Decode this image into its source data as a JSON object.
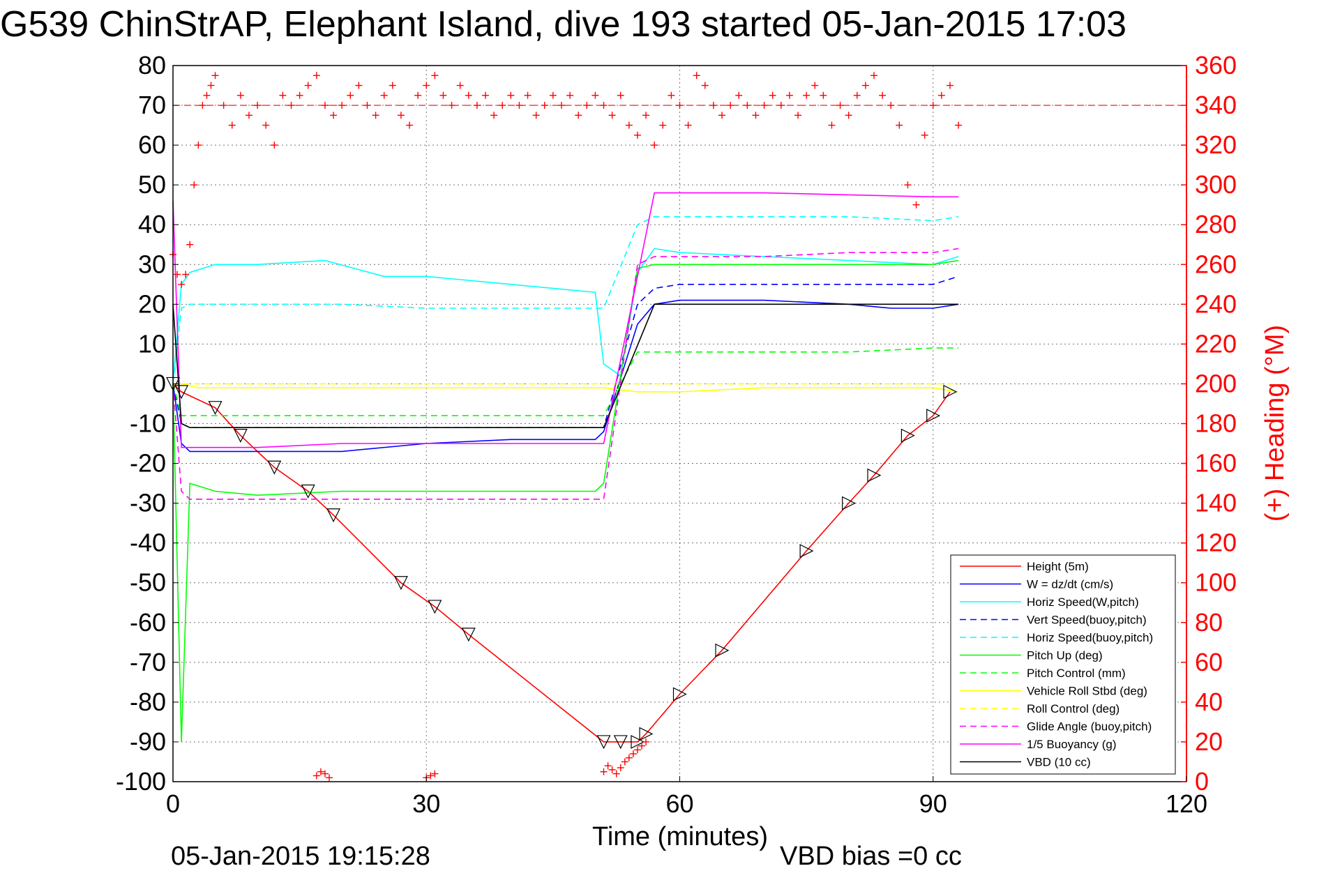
{
  "chart_data": {
    "type": "line",
    "title": "G539 ChinStrAP, Elephant Island, dive 193 started 05-Jan-2015 17:03",
    "xlabel": "Time (minutes)",
    "ylabel_right": "(+) Heading (°M)",
    "footer_left": "05-Jan-2015 19:15:28",
    "footer_right": "VBD bias =0 cc",
    "xlim": [
      0,
      120
    ],
    "ylim": [
      -100,
      80
    ],
    "ylim_right": [
      0,
      360
    ],
    "x_ticks": [
      "0",
      "30",
      "60",
      "90",
      "120"
    ],
    "y_ticks": [
      "80",
      "70",
      "60",
      "50",
      "40",
      "30",
      "20",
      "10",
      "0",
      "-10",
      "-20",
      "-30",
      "-40",
      "-50",
      "-60",
      "-70",
      "-80",
      "-90",
      "-100"
    ],
    "y_ticks_right": [
      "360",
      "340",
      "320",
      "300",
      "280",
      "260",
      "240",
      "220",
      "200",
      "180",
      "160",
      "140",
      "120",
      "100",
      "80",
      "60",
      "40",
      "20",
      "0"
    ],
    "grid": true,
    "legend_position": "bottom-right",
    "heading_reference": 340,
    "series": [
      {
        "name": "Height (5m)",
        "color": "#ff0000",
        "style": "solid",
        "x": [
          0,
          1,
          5,
          8,
          12,
          16,
          19,
          27,
          31,
          35,
          51,
          53,
          55,
          56,
          60,
          65,
          75,
          80,
          83,
          87,
          90,
          92
        ],
        "y": [
          0,
          -2,
          -6,
          -13,
          -21,
          -27,
          -33,
          -50,
          -56,
          -63,
          -90,
          -90,
          -90,
          -88,
          -78,
          -67,
          -42,
          -30,
          -23,
          -13,
          -8,
          -2
        ]
      },
      {
        "name": "W = dz/dt (cm/s)",
        "color": "#0000ff",
        "style": "solid",
        "x": [
          0,
          1,
          2,
          5,
          10,
          20,
          30,
          40,
          50,
          51,
          55,
          57,
          60,
          70,
          80,
          85,
          90,
          93
        ],
        "y": [
          0,
          -15,
          -17,
          -17,
          -17,
          -17,
          -15,
          -14,
          -14,
          -12,
          15,
          20,
          21,
          21,
          20,
          19,
          19,
          20
        ]
      },
      {
        "name": "Horiz Speed(W,pitch)",
        "color": "#00ffff",
        "style": "solid",
        "x": [
          0,
          1,
          2,
          5,
          10,
          18,
          25,
          30,
          40,
          50,
          51,
          53,
          55,
          57,
          60,
          70,
          80,
          90,
          93
        ],
        "y": [
          0,
          25,
          28,
          30,
          30,
          31,
          27,
          27,
          25,
          23,
          5,
          2,
          28,
          34,
          33,
          32,
          31,
          30,
          32
        ]
      },
      {
        "name": "Vert Speed(buoy,pitch)",
        "color": "#0000ff",
        "style": "dashed",
        "x": [
          0,
          1,
          2,
          10,
          20,
          30,
          40,
          51,
          55,
          57,
          60,
          70,
          80,
          90,
          93
        ],
        "y": [
          0,
          -10,
          -11,
          -11,
          -11,
          -11,
          -11,
          -11,
          20,
          24,
          25,
          25,
          25,
          25,
          27
        ]
      },
      {
        "name": "Horiz Speed(buoy,pitch)",
        "color": "#00ffff",
        "style": "dashed",
        "x": [
          0,
          1,
          2,
          10,
          20,
          30,
          40,
          51,
          55,
          57,
          60,
          70,
          80,
          90,
          93
        ],
        "y": [
          0,
          19,
          20,
          20,
          20,
          19,
          19,
          19,
          40,
          42,
          42,
          42,
          42,
          41,
          42
        ]
      },
      {
        "name": "Pitch Up (deg)",
        "color": "#00ff00",
        "style": "solid",
        "x": [
          0,
          1,
          2,
          5,
          10,
          20,
          30,
          40,
          50,
          51,
          55,
          57,
          60,
          70,
          80,
          90,
          93
        ],
        "y": [
          0,
          -90,
          -25,
          -27,
          -28,
          -27,
          -27,
          -27,
          -27,
          -25,
          29,
          30,
          30,
          30,
          30,
          30,
          31
        ]
      },
      {
        "name": "Pitch Control (mm)",
        "color": "#00ff00",
        "style": "dashed",
        "x": [
          0,
          1,
          2,
          10,
          20,
          30,
          40,
          51,
          55,
          57,
          60,
          70,
          80,
          90,
          93
        ],
        "y": [
          0,
          -8,
          -8,
          -8,
          -8,
          -8,
          -8,
          -8,
          8,
          8,
          8,
          8,
          8,
          9,
          9
        ]
      },
      {
        "name": "Vehicle Roll Stbd (deg)",
        "color": "#ffff00",
        "style": "solid",
        "x": [
          0,
          1,
          3,
          5,
          10,
          20,
          30,
          40,
          50,
          51,
          55,
          60,
          70,
          80,
          90,
          93
        ],
        "y": [
          0,
          0,
          -1,
          -1,
          -1,
          -1,
          -1,
          -1,
          -1,
          -1,
          -2,
          -2,
          -1,
          -1,
          -1,
          -2
        ]
      },
      {
        "name": "Roll Control (deg)",
        "color": "#ffff00",
        "style": "dashed",
        "x": [
          0,
          1,
          5,
          10,
          20,
          30,
          40,
          50,
          60,
          70,
          80,
          90,
          93
        ],
        "y": [
          0,
          0,
          0,
          0,
          0,
          0,
          0,
          0,
          0,
          0,
          0,
          0,
          0
        ]
      },
      {
        "name": "Glide Angle (buoy,pitch)",
        "color": "#ff00ff",
        "style": "dashed",
        "x": [
          0,
          1,
          2,
          10,
          20,
          30,
          40,
          51,
          55,
          57,
          60,
          70,
          80,
          90,
          93
        ],
        "y": [
          0,
          -27,
          -29,
          -29,
          -29,
          -29,
          -29,
          -29,
          30,
          32,
          32,
          32,
          33,
          33,
          34
        ]
      },
      {
        "name": "1/5 Buoyancy (g)",
        "color": "#ff00ff",
        "style": "solid",
        "x": [
          0,
          1,
          2,
          10,
          20,
          30,
          40,
          51,
          57,
          60,
          70,
          80,
          90,
          93
        ],
        "y": [
          46,
          -16,
          -16,
          -16,
          -15,
          -15,
          -15,
          -15,
          48,
          48,
          48,
          47.5,
          47,
          47
        ]
      },
      {
        "name": "VBD (10 cc)",
        "color": "#000000",
        "style": "solid",
        "x": [
          0,
          1,
          2,
          10,
          20,
          30,
          40,
          51,
          57,
          60,
          70,
          80,
          90,
          93
        ],
        "y": [
          20,
          -10,
          -11,
          -11,
          -11,
          -11,
          -11,
          -11,
          20,
          20,
          20,
          20,
          20,
          20
        ]
      }
    ],
    "heading_series": {
      "name": "(+) Heading",
      "color": "#ff0000",
      "marker": "+",
      "x": [
        0,
        0.5,
        1,
        1.5,
        2,
        2.5,
        3,
        3.5,
        4,
        4.5,
        5,
        6,
        7,
        8,
        9,
        10,
        11,
        12,
        13,
        14,
        15,
        16,
        17,
        18,
        19,
        20,
        21,
        22,
        23,
        24,
        25,
        26,
        27,
        28,
        29,
        30,
        31,
        32,
        33,
        34,
        35,
        36,
        37,
        38,
        39,
        40,
        41,
        42,
        43,
        44,
        45,
        46,
        47,
        48,
        49,
        50,
        51,
        52,
        53,
        54,
        55,
        56,
        57,
        58,
        59,
        60,
        61,
        62,
        63,
        64,
        65,
        66,
        67,
        68,
        69,
        70,
        71,
        72,
        73,
        74,
        75,
        76,
        77,
        78,
        79,
        80,
        81,
        82,
        83,
        84,
        85,
        86,
        87,
        88,
        89,
        90,
        91,
        92,
        93
      ],
      "y": [
        265,
        255,
        250,
        255,
        270,
        300,
        320,
        340,
        345,
        350,
        355,
        340,
        330,
        345,
        335,
        340,
        330,
        320,
        345,
        340,
        345,
        350,
        355,
        340,
        335,
        340,
        345,
        350,
        340,
        335,
        345,
        350,
        335,
        330,
        345,
        350,
        355,
        345,
        340,
        350,
        345,
        340,
        345,
        335,
        340,
        345,
        340,
        345,
        335,
        340,
        345,
        340,
        345,
        335,
        340,
        345,
        340,
        335,
        345,
        330,
        325,
        335,
        320,
        330,
        345,
        340,
        330,
        355,
        350,
        340,
        335,
        340,
        345,
        340,
        335,
        340,
        345,
        340,
        345,
        335,
        345,
        350,
        345,
        330,
        340,
        335,
        345,
        350,
        355,
        345,
        340,
        330,
        300,
        290,
        325,
        340,
        345,
        350,
        330
      ]
    },
    "heading_series_low": {
      "x": [
        17,
        17.5,
        18,
        18.5,
        30,
        30.5,
        31,
        51,
        51.5,
        52,
        52.5,
        53,
        53.5,
        54,
        54.5,
        55,
        55.5,
        56
      ],
      "y": [
        3,
        5,
        4,
        2,
        2,
        3,
        4,
        5,
        8,
        6,
        4,
        7,
        10,
        12,
        14,
        16,
        18,
        20
      ]
    }
  }
}
